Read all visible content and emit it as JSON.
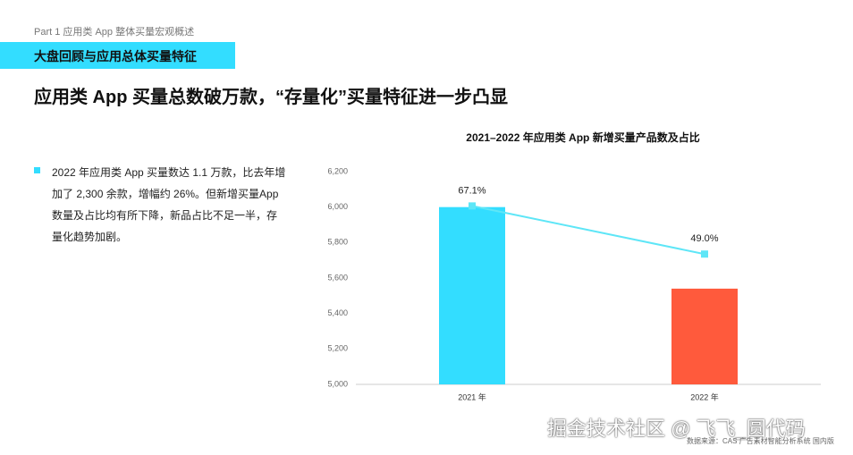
{
  "header": {
    "part": "Part 1 应用类 App 整体买量宏观概述",
    "section": "大盘回顾与应用总体买量特征",
    "title": "应用类 App 买量总数破万款，“存量化”买量特征进一步凸显"
  },
  "bullet": "2022 年应用类 App 买量数达 1.1 万款，比去年增加了 2,300 余款，增幅约 26%。但新增买量App 数量及占比均有所下降，新品占比不足一半，存量化趋势加剧。",
  "source": "数据来源：CAS 广告素材智能分析系统 国内版",
  "watermark": "掘金技术社区 @ 飞飞_圆代码",
  "chart_data": {
    "type": "bar",
    "title": "2021–2022  年应用类 App 新增买量产品数及占比",
    "categories": [
      "2021 年",
      "2022 年"
    ],
    "series": [
      {
        "type": "bar",
        "values": [
          6000,
          5540
        ],
        "colors": [
          "#33ddff",
          "#ff5a3c"
        ]
      },
      {
        "type": "line",
        "axis": "y2",
        "values": [
          67.1,
          49.0
        ],
        "value_labels": [
          "67.1%",
          "49.0%"
        ],
        "color": "#5ee6f7"
      }
    ],
    "ylim": [
      5000,
      6200
    ],
    "yticks": [
      {
        "value": 5000,
        "label": "5,000"
      },
      {
        "value": 5200,
        "label": "5,200"
      },
      {
        "value": 5400,
        "label": "5,400"
      },
      {
        "value": 5600,
        "label": "5,600"
      },
      {
        "value": 5800,
        "label": "5,800"
      },
      {
        "value": 6000,
        "label": "6,000"
      },
      {
        "value": 6200,
        "label": "6,200"
      }
    ],
    "y2lim": [
      0,
      80
    ]
  }
}
